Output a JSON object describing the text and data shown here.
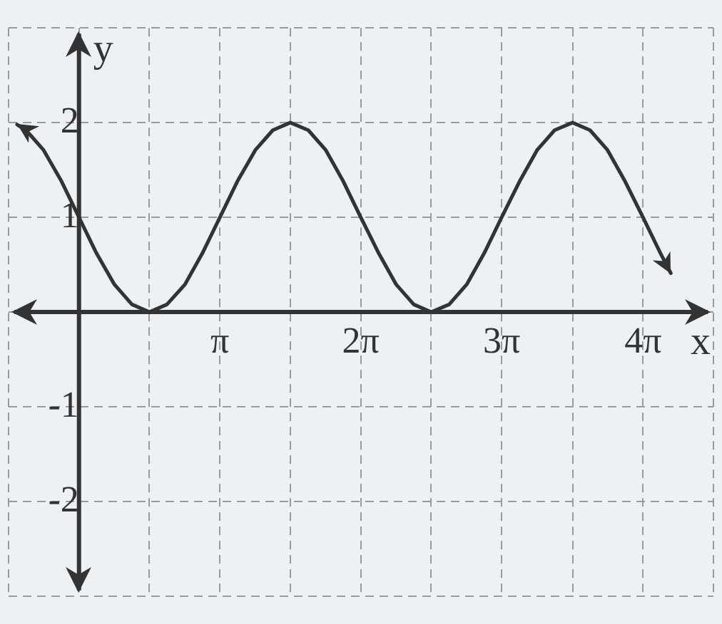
{
  "chart_data": {
    "type": "line",
    "xlabel": "x",
    "ylabel": "y",
    "series": [
      {
        "color": "#333333",
        "x": [
          -1.38,
          -1.18,
          -0.79,
          -0.39,
          0,
          0.39,
          0.79,
          1.18,
          1.57,
          1.96,
          2.36,
          2.75,
          3.14,
          3.53,
          3.93,
          4.32,
          4.71,
          5.11,
          5.5,
          5.89,
          6.28,
          6.68,
          7.07,
          7.46,
          7.85,
          8.25,
          8.64,
          9.03,
          9.42,
          9.82,
          10.21,
          10.6,
          11,
          11.39,
          11.78,
          12.17,
          12.57,
          12.96,
          13.19
        ],
        "values": [
          1.98,
          1.92,
          1.71,
          1.38,
          1,
          0.62,
          0.29,
          0.08,
          0,
          0.08,
          0.29,
          0.62,
          1,
          1.38,
          1.71,
          1.92,
          2,
          1.92,
          1.71,
          1.38,
          1,
          0.62,
          0.29,
          0.08,
          0,
          0.08,
          0.29,
          0.62,
          1,
          1.38,
          1.71,
          1.92,
          2,
          1.92,
          1.71,
          1.38,
          1,
          0.62,
          0.41
        ]
      }
    ],
    "xlim": [
      -1.57,
      14.14
    ],
    "ylim": [
      -3,
      3
    ],
    "xticks": [
      {
        "value": -1.57,
        "label": null
      },
      {
        "value": 0,
        "label": null
      },
      {
        "value": 1.57,
        "label": null
      },
      {
        "value": 3.14,
        "label": "π"
      },
      {
        "value": 4.71,
        "label": null
      },
      {
        "value": 6.28,
        "label": "2π"
      },
      {
        "value": 7.85,
        "label": null
      },
      {
        "value": 9.42,
        "label": "3π"
      },
      {
        "value": 11,
        "label": null
      },
      {
        "value": 12.57,
        "label": "4π"
      },
      {
        "value": 14.14,
        "label": null
      }
    ],
    "yticks": [
      {
        "value": -3,
        "label": null
      },
      -2,
      -1,
      {
        "value": 0,
        "label": null
      },
      1,
      2,
      {
        "value": 3,
        "label": null
      }
    ],
    "grid": true,
    "legend": false,
    "marker": "none",
    "line_style": "solid"
  }
}
